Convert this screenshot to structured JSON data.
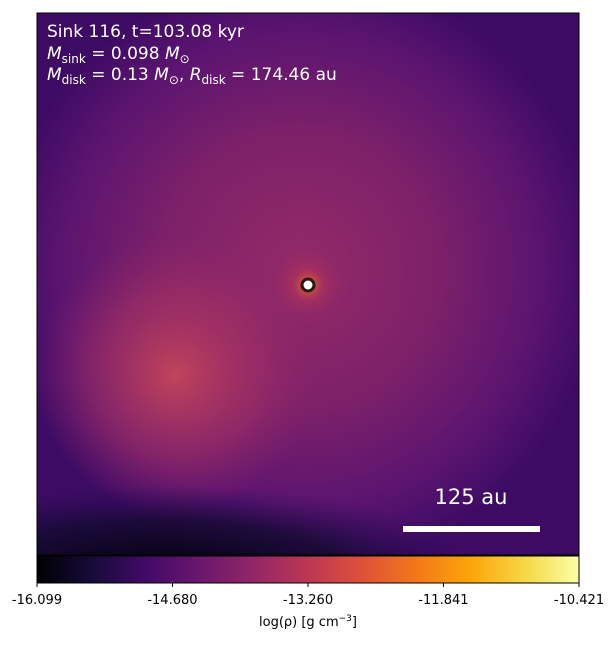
{
  "chart_data": {
    "type": "image",
    "title": "Sink 116, t=103.08 kyr",
    "mass_sink": {
      "symbol": "M",
      "sub": "sink",
      "value": " = 0.098 ",
      "unit": "M",
      "unit_sub": "⊙"
    },
    "disk": {
      "symbol": "M",
      "sub": "disk",
      "value": " = 0.13 ",
      "unit": "M",
      "unit_sub": "⊙",
      "sep": ", ",
      "r_symbol": "R",
      "r_sub": "disk",
      "r_value": " = 174.46 au"
    },
    "scale_bar_label": "125 au",
    "colorbar_label": "log(ρ) [g cm",
    "colorbar_label_sup": "−3",
    "colorbar_label_end": "]",
    "clim": [
      -16.099,
      -10.421
    ],
    "cticks": [
      -16.099,
      {
        "value": -14.68,
        "label": "-14.680"
      },
      {
        "value": -13.26,
        "label": "-13.260"
      },
      -11.841,
      -10.421
    ]
  }
}
